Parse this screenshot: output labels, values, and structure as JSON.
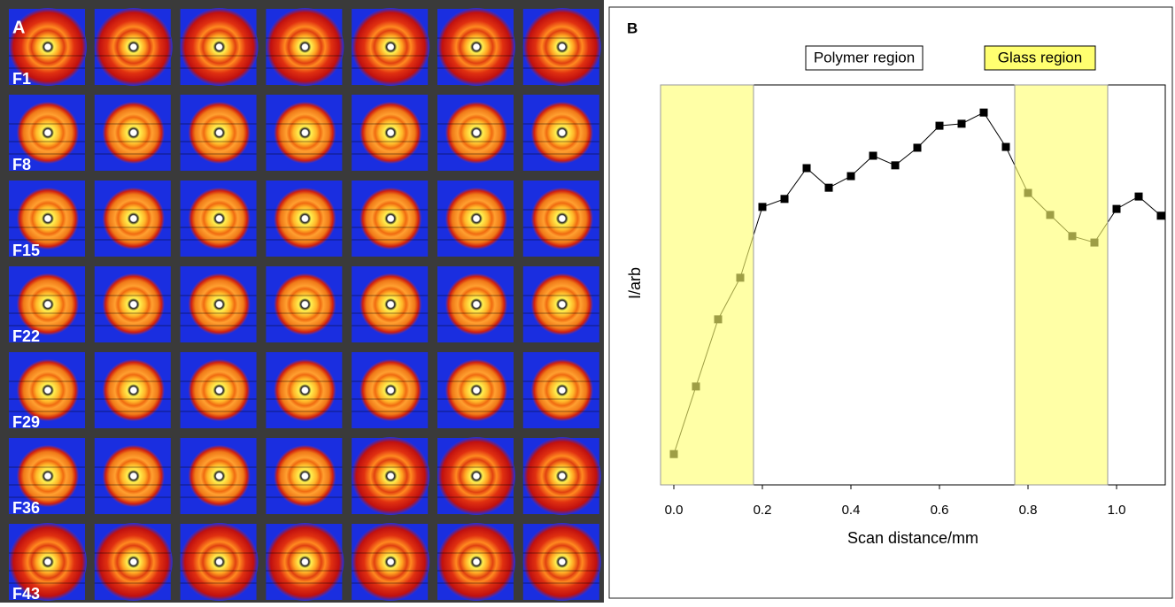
{
  "chart_data": [
    {
      "type": "image-grid",
      "panel_label": "A",
      "row_labels": [
        "F1",
        "F8",
        "F15",
        "F22",
        "F29",
        "F36",
        "F43"
      ]
    },
    {
      "type": "line",
      "panel_label": "B",
      "x_label": "Scan distance/mm",
      "y_label": "I/arb",
      "annotations": [
        "Polymer region",
        "Glass region"
      ],
      "x": [
        0,
        0.05,
        0.1,
        0.15,
        0.2,
        0.25,
        0.3,
        0.35,
        0.4,
        0.45,
        0.5,
        0.55,
        0.6,
        0.65,
        0.7,
        0.75,
        0.8,
        0.85,
        0.9,
        0.95,
        1.0,
        1.05,
        1.1
      ],
      "values": [
        7.7,
        24.6,
        41.4,
        51.8,
        69.5,
        71.5,
        79.2,
        74.3,
        77.2,
        82.3,
        79.9,
        84.3,
        89.8,
        90.3,
        93.1,
        84.5,
        73.0,
        67.5,
        62.2,
        60.6,
        69.0,
        72.1,
        67.3
      ],
      "color": "#000000",
      "shaded_regions": [
        {
          "xlim": [
            -0.03,
            0.18
          ],
          "color": "#ffff70"
        },
        {
          "xlim": [
            0.77,
            0.98
          ],
          "color": "#ffff70"
        }
      ],
      "xlim": [
        -0.03,
        1.11
      ],
      "xticks": [
        {
          "value": 0,
          "label": "0.0"
        },
        0.2,
        0.4,
        0.6,
        0.8,
        {
          "value": 1,
          "label": "1.0"
        }
      ],
      "ylim": [
        0,
        100
      ]
    }
  ]
}
